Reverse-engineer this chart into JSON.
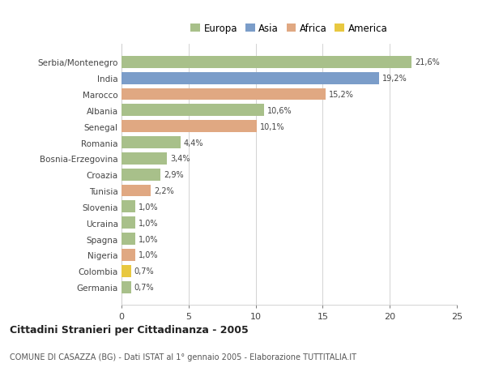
{
  "countries": [
    "Serbia/Montenegro",
    "India",
    "Marocco",
    "Albania",
    "Senegal",
    "Romania",
    "Bosnia-Erzegovina",
    "Croazia",
    "Tunisia",
    "Slovenia",
    "Ucraina",
    "Spagna",
    "Nigeria",
    "Colombia",
    "Germania"
  ],
  "values": [
    21.6,
    19.2,
    15.2,
    10.6,
    10.1,
    4.4,
    3.4,
    2.9,
    2.2,
    1.0,
    1.0,
    1.0,
    1.0,
    0.7,
    0.7
  ],
  "labels": [
    "21,6%",
    "19,2%",
    "15,2%",
    "10,6%",
    "10,1%",
    "4,4%",
    "3,4%",
    "2,9%",
    "2,2%",
    "1,0%",
    "1,0%",
    "1,0%",
    "1,0%",
    "0,7%",
    "0,7%"
  ],
  "continents": [
    "Europa",
    "Asia",
    "Africa",
    "Europa",
    "Africa",
    "Europa",
    "Europa",
    "Europa",
    "Africa",
    "Europa",
    "Europa",
    "Europa",
    "Africa",
    "America",
    "Europa"
  ],
  "continent_colors": {
    "Europa": "#a8c08a",
    "Asia": "#7b9dc9",
    "Africa": "#e0a882",
    "America": "#e8c840"
  },
  "legend_entries": [
    "Europa",
    "Asia",
    "Africa",
    "America"
  ],
  "legend_colors": [
    "#a8c08a",
    "#7b9dc9",
    "#e0a882",
    "#e8c840"
  ],
  "xlim": [
    0,
    25
  ],
  "xticks": [
    0,
    5,
    10,
    15,
    20,
    25
  ],
  "title": "Cittadini Stranieri per Cittadinanza - 2005",
  "subtitle": "COMUNE DI CASAZZA (BG) - Dati ISTAT al 1° gennaio 2005 - Elaborazione TUTTITALIA.IT",
  "background_color": "#ffffff",
  "grid_color": "#cccccc",
  "bar_height": 0.75
}
